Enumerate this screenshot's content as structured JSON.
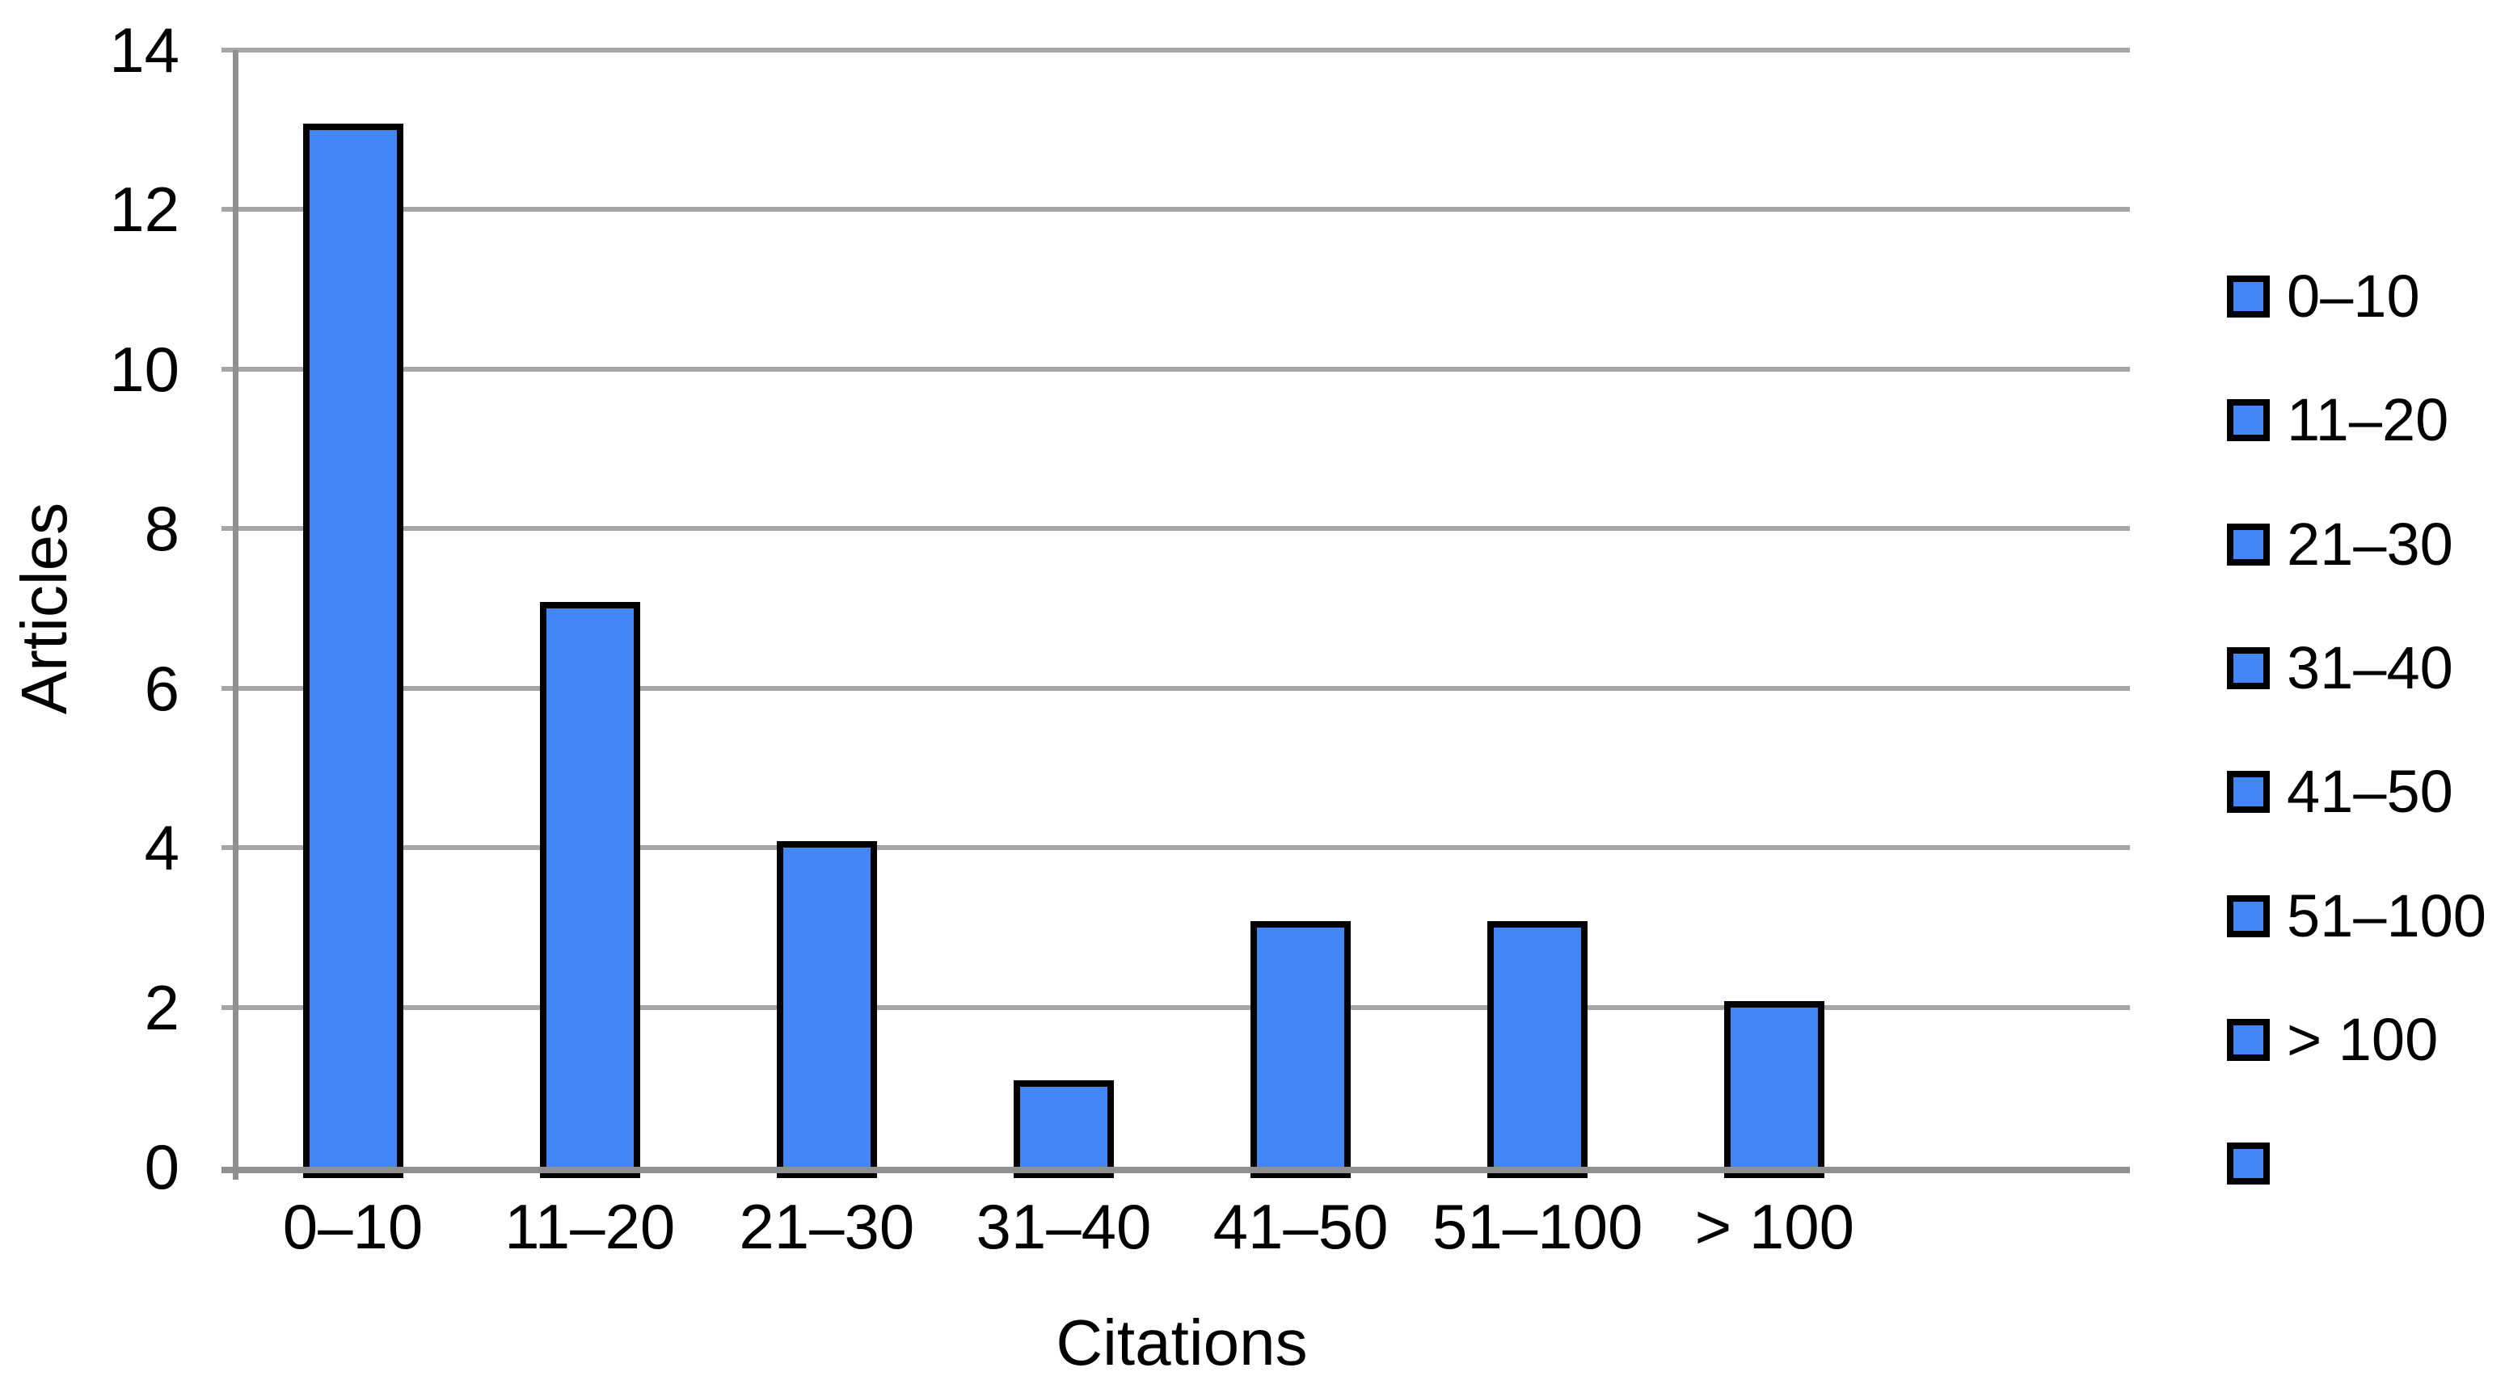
{
  "chart_data": {
    "type": "bar",
    "title": "",
    "xlabel": "Citations",
    "ylabel": "Articles",
    "categories": [
      "0–10",
      "11–20",
      "21–30",
      "31–40",
      "41–50",
      "51–100",
      "> 100",
      ""
    ],
    "values": [
      13,
      7,
      4,
      1,
      3,
      3,
      2,
      null
    ],
    "ylim": [
      0,
      14
    ],
    "ytick_step": 2,
    "yticks": [
      0,
      2,
      4,
      6,
      8,
      10,
      12,
      14
    ],
    "grid": "horizontal",
    "legend_position": "right",
    "legend": [
      "0–10",
      "11–20",
      "21–30",
      "31–40",
      "41–50",
      "51–100",
      "> 100",
      ""
    ],
    "colors": {
      "bar_fill": "#4285F4",
      "bar_border": "#000000",
      "gridline": "#A6A6A6",
      "axis_line": "#909090",
      "text": "#000000",
      "background": "#FFFFFF"
    }
  }
}
